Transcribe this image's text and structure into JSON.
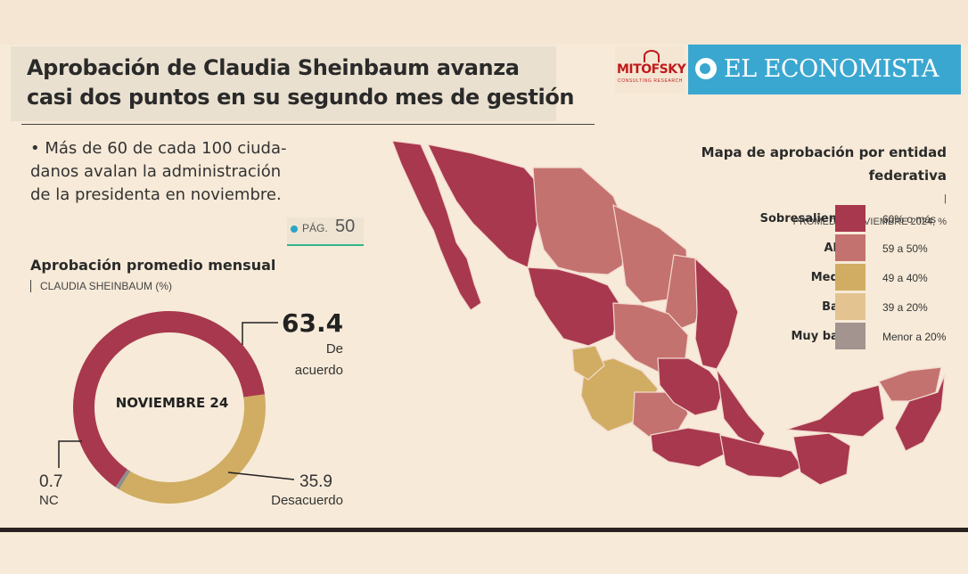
{
  "header": {
    "headline_line1": "Aprobación de Claudia Sheinbaum avanza",
    "headline_line2": "casi dos puntos en su segundo mes de gestión"
  },
  "logos": {
    "mitofsky": "MITOFSKY",
    "mitofsky_tagline": "CONSULTING RESEARCH",
    "economista": "EL ECONOMISTA"
  },
  "bullet": {
    "line1": "• Más de 60 de cada 100 ciuda-",
    "line2": "danos avalan la administración",
    "line3": "de la presidenta en noviembre."
  },
  "page_ref": {
    "label": "PÁG.",
    "number": "50"
  },
  "colors": {
    "sobresaliente": "#a8384e",
    "alta": "#c4726f",
    "media": "#d0ad62",
    "baja": "#e3c491",
    "muy_baja": "#a39490",
    "nc": "#8f8f8f",
    "background": "#f7ead8",
    "brand_blue": "#3aa7d0"
  },
  "chart_data": [
    {
      "type": "pie",
      "title": "Aprobación promedio mensual",
      "subtitle": "CLAUDIA SHEINBAUM (%)",
      "center_label": "NOVIEMBRE 24",
      "slices": [
        {
          "label": "De acuerdo",
          "value": 63.4,
          "value_text": "63.4"
        },
        {
          "label": "Desacuerdo",
          "value": 35.9,
          "value_text": "35.9"
        },
        {
          "label": "NC",
          "value": 0.7,
          "value_text": "0.7"
        }
      ],
      "label_de": "De",
      "label_acuerdo": "acuerdo"
    },
    {
      "type": "heatmap",
      "title_line1": "Mapa de aprobación por entidad",
      "title_line2": "federativa",
      "subtitle": "PROMEDIO NOVIEMBRE 2024, %",
      "legend": [
        {
          "name": "Sobresaliente",
          "range": "60% o más",
          "key": "sobresaliente"
        },
        {
          "name": "Alta",
          "range": "59 a 50%",
          "key": "alta"
        },
        {
          "name": "Media",
          "range": "49 a 40%",
          "key": "media"
        },
        {
          "name": "Baja",
          "range": "39 a 20%",
          "key": "baja"
        },
        {
          "name": "Muy baja",
          "range": "Menor a 20%",
          "key": "muy_baja"
        }
      ]
    }
  ]
}
